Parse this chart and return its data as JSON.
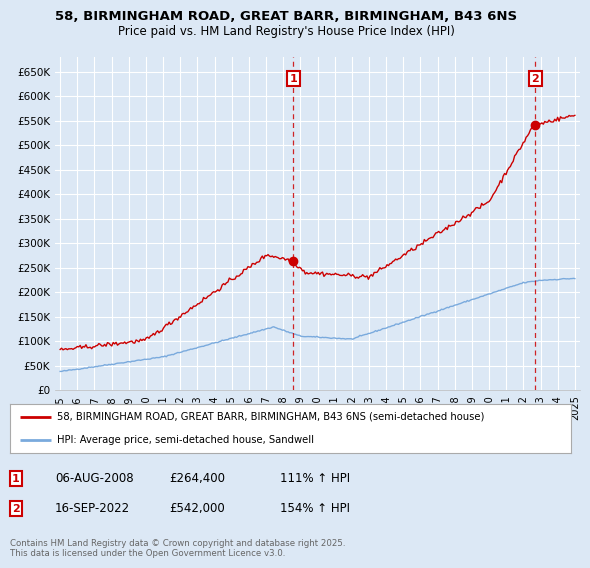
{
  "title1": "58, BIRMINGHAM ROAD, GREAT BARR, BIRMINGHAM, B43 6NS",
  "title2": "Price paid vs. HM Land Registry's House Price Index (HPI)",
  "bg_color": "#dce8f5",
  "plot_bg_color": "#dce8f5",
  "grid_color": "#ffffff",
  "red_color": "#cc0000",
  "blue_color": "#7aaadd",
  "annotation1": {
    "label": "1",
    "date": "06-AUG-2008",
    "price": "£264,400",
    "pct": "111% ↑ HPI"
  },
  "annotation2": {
    "label": "2",
    "date": "16-SEP-2022",
    "price": "£542,000",
    "pct": "154% ↑ HPI"
  },
  "legend1": "58, BIRMINGHAM ROAD, GREAT BARR, BIRMINGHAM, B43 6NS (semi-detached house)",
  "legend2": "HPI: Average price, semi-detached house, Sandwell",
  "footer": "Contains HM Land Registry data © Crown copyright and database right 2025.\nThis data is licensed under the Open Government Licence v3.0.",
  "xmin": 1994.7,
  "xmax": 2025.3,
  "ymin": 0,
  "ymax": 680000,
  "yticks": [
    0,
    50000,
    100000,
    150000,
    200000,
    250000,
    300000,
    350000,
    400000,
    450000,
    500000,
    550000,
    600000,
    650000
  ],
  "ytick_labels": [
    "£0",
    "£50K",
    "£100K",
    "£150K",
    "£200K",
    "£250K",
    "£300K",
    "£350K",
    "£400K",
    "£450K",
    "£500K",
    "£550K",
    "£600K",
    "£650K"
  ],
  "xticks": [
    1995,
    1996,
    1997,
    1998,
    1999,
    2000,
    2001,
    2002,
    2003,
    2004,
    2005,
    2006,
    2007,
    2008,
    2009,
    2010,
    2011,
    2012,
    2013,
    2014,
    2015,
    2016,
    2017,
    2018,
    2019,
    2020,
    2021,
    2022,
    2023,
    2024,
    2025
  ],
  "vline1_x": 2008.6,
  "vline2_x": 2022.7,
  "sale1_x": 2008.6,
  "sale1_y": 264400,
  "sale2_x": 2022.7,
  "sale2_y": 542000
}
